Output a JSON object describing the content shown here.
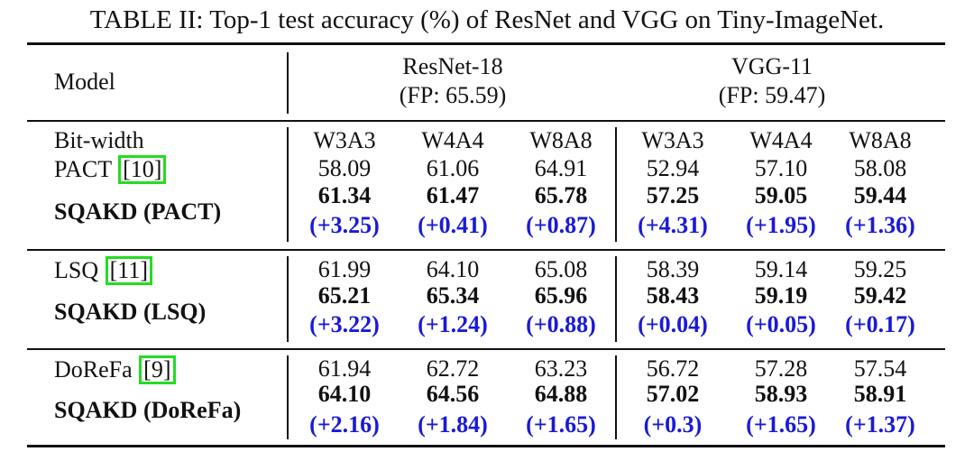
{
  "caption": "TABLE II: Top-1 test accuracy (%) of ResNet and VGG on Tiny-ImageNet.",
  "header": {
    "model": "Model",
    "resnet_name": "ResNet-18",
    "resnet_fp": "(FP: 65.59)",
    "vgg_name": "VGG-11",
    "vgg_fp": "(FP: 59.47)"
  },
  "bitwidth": {
    "label": "Bit-width",
    "cols": [
      "W3A3",
      "W4A4",
      "W8A8",
      "W3A3",
      "W4A4",
      "W8A8"
    ]
  },
  "groups": [
    {
      "baseline_name": "PACT",
      "baseline_cite": "10",
      "baseline": [
        "58.09",
        "61.06",
        "64.91",
        "52.94",
        "57.10",
        "58.08"
      ],
      "ours_label": "SQAKD (PACT)",
      "ours": [
        "61.34",
        "61.47",
        "65.78",
        "57.25",
        "59.05",
        "59.44"
      ],
      "gain": [
        "(+3.25)",
        "(+0.41)",
        "(+0.87)",
        "(+4.31)",
        "(+1.95)",
        "(+1.36)"
      ]
    },
    {
      "baseline_name": "LSQ",
      "baseline_cite": "11",
      "baseline": [
        "61.99",
        "64.10",
        "65.08",
        "58.39",
        "59.14",
        "59.25"
      ],
      "ours_label": "SQAKD (LSQ)",
      "ours": [
        "65.21",
        "65.34",
        "65.96",
        "58.43",
        "59.19",
        "59.42"
      ],
      "gain": [
        "(+3.22)",
        "(+1.24)",
        "(+0.88)",
        "(+0.04)",
        "(+0.05)",
        "(+0.17)"
      ]
    },
    {
      "baseline_name": "DoReFa",
      "baseline_cite": "9",
      "baseline": [
        "61.94",
        "62.72",
        "63.23",
        "56.72",
        "57.28",
        "57.54"
      ],
      "ours_label": "SQAKD (DoReFa)",
      "ours": [
        "64.10",
        "64.56",
        "64.88",
        "57.02",
        "58.93",
        "58.91"
      ],
      "gain": [
        "(+2.16)",
        "(+1.84)",
        "(+1.65)",
        "(+0.3)",
        "(+1.65)",
        "(+1.37)"
      ]
    }
  ]
}
